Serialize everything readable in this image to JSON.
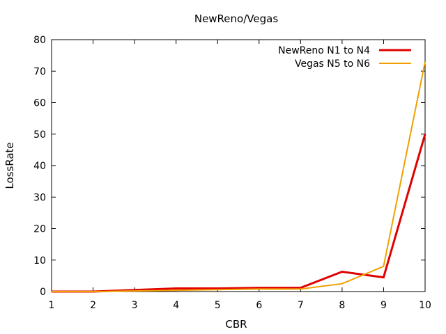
{
  "chart_data": {
    "type": "line",
    "title": "NewReno/Vegas",
    "xlabel": "CBR",
    "ylabel": "LossRate",
    "xlim": [
      1,
      10
    ],
    "ylim": [
      0,
      80
    ],
    "xticks": [
      1,
      2,
      3,
      4,
      5,
      6,
      7,
      8,
      9,
      10
    ],
    "yticks": [
      0,
      10,
      20,
      30,
      40,
      50,
      60,
      70,
      80
    ],
    "grid": false,
    "legend_position": "top-right",
    "x": [
      1,
      2,
      3,
      4,
      5,
      6,
      7,
      8,
      9,
      10
    ],
    "series": [
      {
        "name": "NewReno N1 to N4",
        "color": "#e00000",
        "values": [
          0,
          0,
          0.5,
          1.0,
          1.0,
          1.2,
          1.2,
          6.3,
          4.5,
          50
        ]
      },
      {
        "name": "Vegas N5 to N6",
        "color": "#f0a000",
        "values": [
          0,
          0,
          0.2,
          0.4,
          0.6,
          0.8,
          0.8,
          2.5,
          8.0,
          73
        ]
      }
    ]
  }
}
